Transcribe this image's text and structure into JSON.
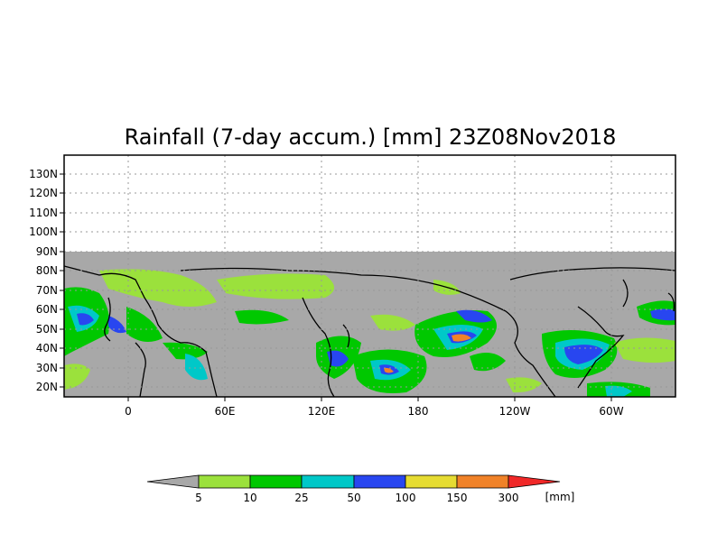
{
  "title": "Rainfall (7-day accum.) [mm] 23Z08Nov2018",
  "lat_labels": [
    "130N",
    "120N",
    "110N",
    "100N",
    "90N",
    "80N",
    "70N",
    "60N",
    "50N",
    "40N",
    "30N",
    "20N"
  ],
  "lon_labels": [
    "0",
    "60E",
    "120E",
    "180",
    "120W",
    "60W"
  ],
  "legend": {
    "unit": "[mm]",
    "thresholds": [
      "5",
      "10",
      "25",
      "50",
      "100",
      "150",
      "300"
    ],
    "colors": [
      "#a8a8a8",
      "#9be13c",
      "#00c800",
      "#00c8c8",
      "#2846f0",
      "#e6dc32",
      "#f08228",
      "#f02828"
    ]
  },
  "colors": {
    "no_data_land_ocean": "#a8a8a8",
    "frame": "#000000",
    "grid": "#999999"
  }
}
